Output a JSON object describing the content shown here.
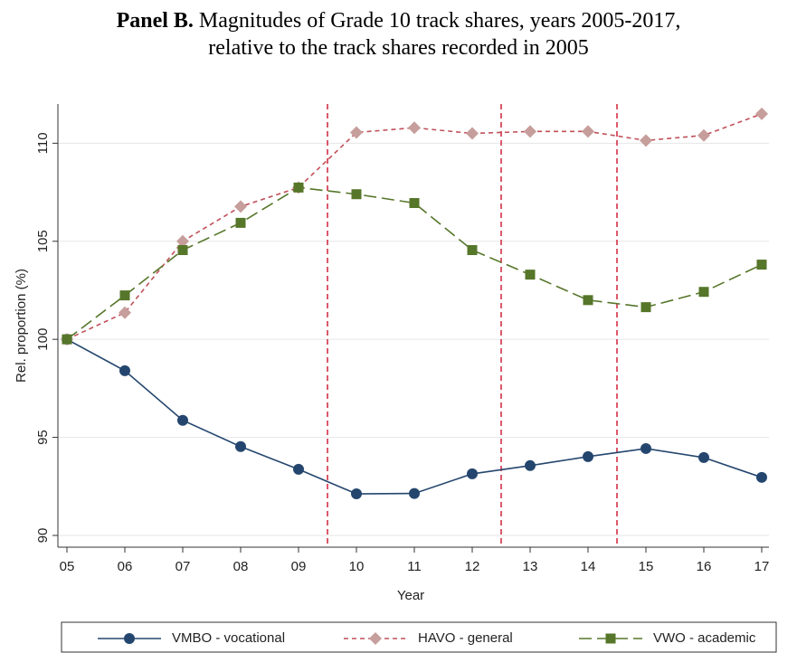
{
  "chart_data": {
    "type": "line",
    "title_label": "Panel B.",
    "title": [
      "Magnitudes of Grade 10 track shares, years 2005-2017,",
      "relative to the track shares recorded in 2005"
    ],
    "x_label": "Year",
    "y_label": "Rel. proportion (%)",
    "categories": [
      "05",
      "06",
      "07",
      "08",
      "09",
      "10",
      "11",
      "12",
      "13",
      "14",
      "15",
      "16",
      "17"
    ],
    "ylim": [
      89.4,
      112
    ],
    "yticks": [
      90,
      95,
      100,
      105,
      110
    ],
    "grid": true,
    "vlines": [
      4.5,
      7.5,
      9.5
    ],
    "vline_color": "#d0223a",
    "legend": "bottom",
    "series": [
      {
        "name": "VMBO - vocational",
        "color": "#24466e",
        "line_style": "solid",
        "marker": "circle",
        "values": [
          100,
          98.4,
          95.87,
          94.53,
          93.37,
          92.12,
          92.14,
          93.14,
          93.56,
          94.02,
          94.43,
          93.97,
          92.96
        ]
      },
      {
        "name": "HAVO - general",
        "color": "#c69e9b",
        "line_color": "#c0505a",
        "line_style": "dash",
        "marker": "diamond",
        "values": [
          100,
          101.36,
          105.0,
          106.77,
          107.74,
          110.55,
          110.79,
          110.5,
          110.6,
          110.6,
          110.14,
          110.4,
          111.5
        ]
      },
      {
        "name": "VWO - academic",
        "color": "#56762a",
        "line_style": "longdash",
        "marker": "square",
        "values": [
          100,
          102.24,
          104.55,
          105.94,
          107.74,
          107.4,
          106.95,
          104.55,
          103.3,
          102.0,
          101.64,
          102.42,
          103.81
        ]
      }
    ]
  }
}
